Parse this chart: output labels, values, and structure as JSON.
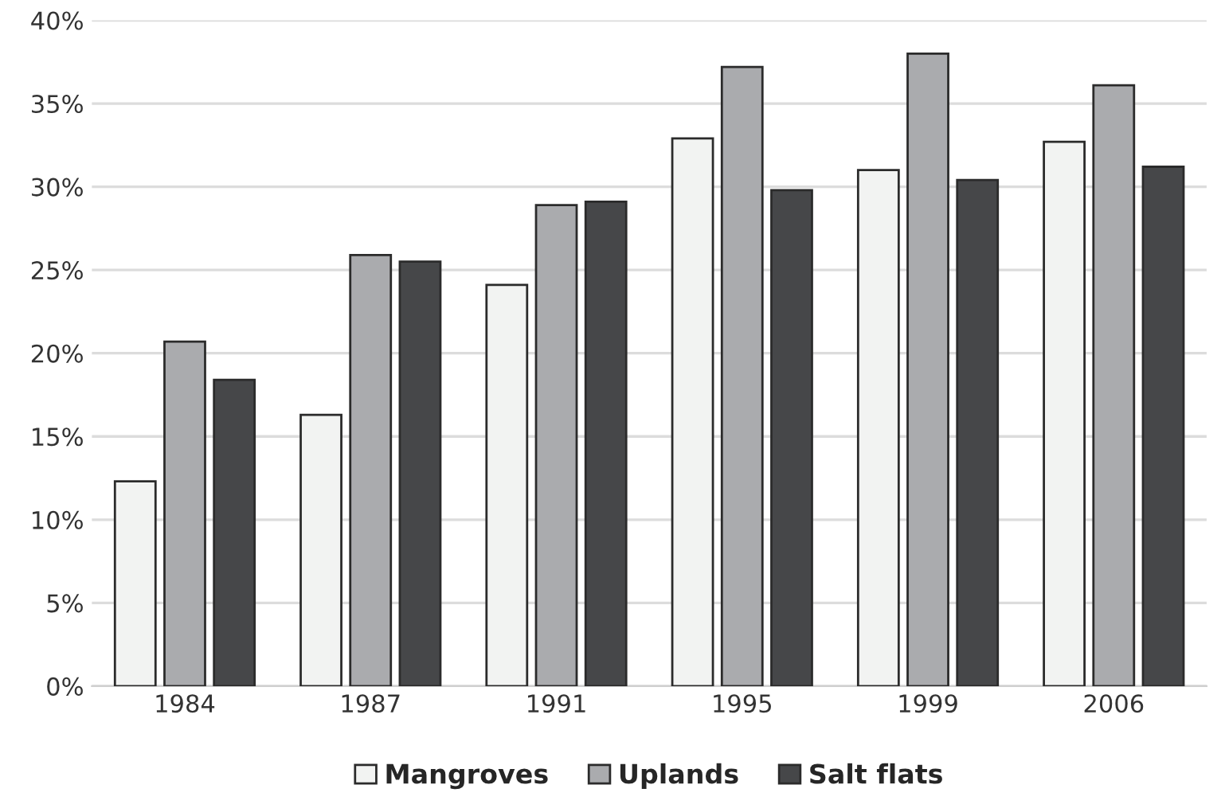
{
  "chart_data": {
    "type": "bar",
    "categories": [
      "1984",
      "1987",
      "1991",
      "1995",
      "1999",
      "2006"
    ],
    "series": [
      {
        "name": "Mangroves",
        "color": "#f2f3f2",
        "values": [
          12.3,
          16.3,
          24.1,
          32.9,
          31.0,
          32.7
        ]
      },
      {
        "name": "Uplands",
        "color": "#aaabae",
        "values": [
          20.7,
          25.9,
          28.9,
          37.2,
          38.0,
          36.1
        ]
      },
      {
        "name": "Salt flats",
        "color": "#464749",
        "values": [
          18.4,
          25.5,
          29.1,
          29.8,
          30.4,
          31.2
        ]
      }
    ],
    "ylim": [
      0,
      40
    ],
    "yticks": [
      {
        "value": 0,
        "label": "0%"
      },
      {
        "value": 5,
        "label": "5%"
      },
      {
        "value": 10,
        "label": "10%"
      },
      {
        "value": 15,
        "label": "15%"
      },
      {
        "value": 20,
        "label": "20%"
      },
      {
        "value": 25,
        "label": "25%"
      },
      {
        "value": 30,
        "label": "30%"
      },
      {
        "value": 35,
        "label": "35%"
      },
      {
        "value": 40,
        "label": "40%"
      }
    ],
    "grid": "y",
    "legend": "bottom"
  }
}
